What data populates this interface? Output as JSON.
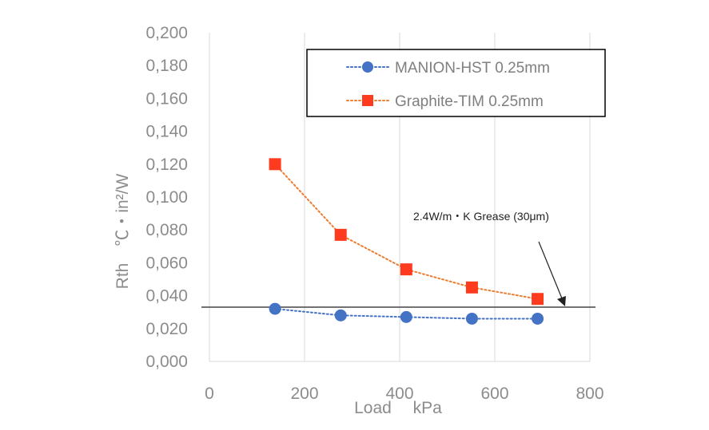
{
  "chart_data": {
    "type": "line",
    "title": "",
    "xlabel": "Load　 kPa",
    "ylabel": "Rth　℃・in²/W",
    "xlim": [
      0,
      800
    ],
    "ylim": [
      0,
      0.2
    ],
    "x_ticks": [
      "0",
      "200",
      "400",
      "600",
      "800"
    ],
    "y_ticks": [
      "0,000",
      "0,020",
      "0,040",
      "0,060",
      "0,080",
      "0,100",
      "0,120",
      "0,140",
      "0,160",
      "0,180",
      "0,200"
    ],
    "grid": "vertical",
    "legend_position": "top-right",
    "series": [
      {
        "name": "MANION-HST 0.25mm",
        "marker": "circle",
        "color": "#4472c4",
        "line_style": "dotted",
        "x": [
          138,
          276,
          414,
          552,
          690
        ],
        "values": [
          0.032,
          0.028,
          0.027,
          0.026,
          0.026
        ]
      },
      {
        "name": "Graphite-TIM 0.25mm",
        "marker": "square",
        "color": "#ff3b1f",
        "line_color": "#ed7d31",
        "line_style": "dotted",
        "x": [
          138,
          276,
          414,
          552,
          690
        ],
        "values": [
          0.12,
          0.077,
          0.056,
          0.045,
          0.038
        ]
      }
    ],
    "reference_line": {
      "label": "2.4W/m・K Grease (30μm)",
      "value": 0.033,
      "color": "#444444"
    }
  }
}
